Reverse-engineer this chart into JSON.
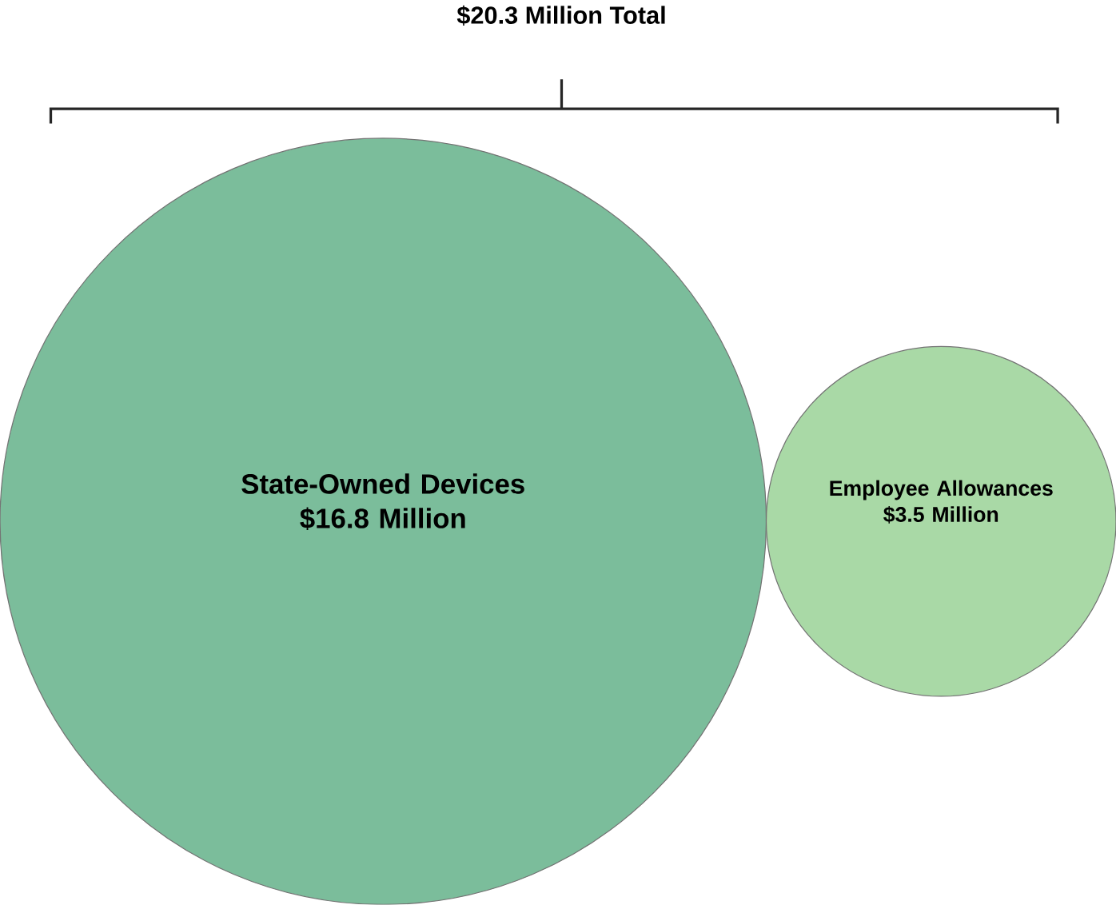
{
  "chart_data": {
    "type": "other",
    "title": "$20.3 Million Total",
    "categories": [
      "State-Owned Devices",
      "Employee Allowances"
    ],
    "values": [
      16.8,
      3.5
    ],
    "value_labels": [
      "$16.8 Million",
      "$3.5 Million"
    ],
    "colors": [
      "#7bbd9b",
      "#a9d9a6"
    ]
  }
}
